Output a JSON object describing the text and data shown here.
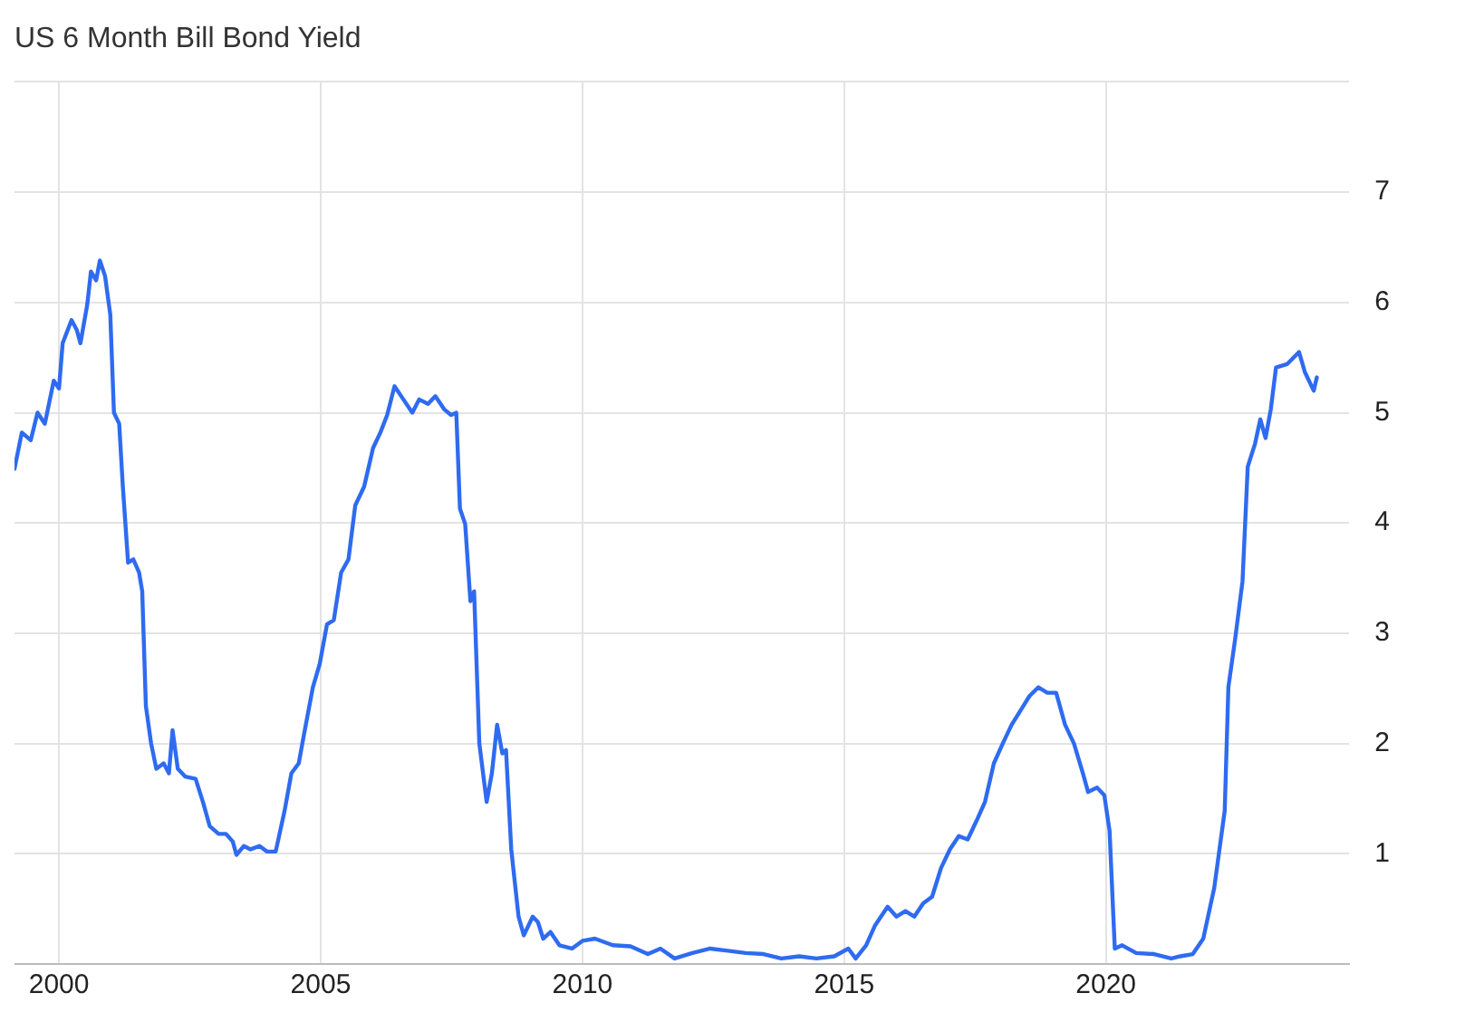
{
  "chart_data": {
    "type": "line",
    "title": "US 6 Month Bill Bond Yield",
    "xlim": [
      1999.15,
      2024.65
    ],
    "xticks": [
      2000,
      2005,
      2010,
      2015,
      2020
    ],
    "ylim": [
      0,
      8
    ],
    "yticks": [
      1,
      2,
      3,
      4,
      5,
      6,
      7,
      {
        "value": 8,
        "label": null
      }
    ],
    "grid": true,
    "legend": false,
    "marker": "none",
    "line_style": "solid",
    "series": [
      {
        "color": "#2f6bf0",
        "x": [
          1999.15,
          1999.29,
          1999.46,
          1999.59,
          1999.73,
          1999.9,
          2000.0,
          2000.07,
          2000.24,
          2000.34,
          2000.41,
          2000.54,
          2000.61,
          2000.71,
          2000.78,
          2000.88,
          2000.98,
          2001.05,
          2001.15,
          2001.22,
          2001.32,
          2001.42,
          2001.53,
          2001.59,
          2001.66,
          2001.76,
          2001.86,
          2002.0,
          2002.1,
          2002.17,
          2002.27,
          2002.41,
          2002.61,
          2002.75,
          2002.88,
          2003.05,
          2003.19,
          2003.32,
          2003.39,
          2003.53,
          2003.66,
          2003.83,
          2003.97,
          2004.14,
          2004.31,
          2004.44,
          2004.58,
          2004.68,
          2004.85,
          2004.98,
          2005.12,
          2005.25,
          2005.39,
          2005.53,
          2005.66,
          2005.83,
          2006.0,
          2006.14,
          2006.27,
          2006.41,
          2006.58,
          2006.75,
          2006.88,
          2007.05,
          2007.19,
          2007.36,
          2007.49,
          2007.59,
          2007.66,
          2007.76,
          2007.86,
          2007.93,
          2008.03,
          2008.17,
          2008.27,
          2008.37,
          2008.47,
          2008.54,
          2008.64,
          2008.78,
          2008.88,
          2009.05,
          2009.15,
          2009.25,
          2009.39,
          2009.56,
          2009.8,
          2010.0,
          2010.24,
          2010.58,
          2010.92,
          2011.25,
          2011.49,
          2011.76,
          2012.1,
          2012.44,
          2012.78,
          2013.12,
          2013.46,
          2013.8,
          2014.14,
          2014.47,
          2014.81,
          2015.08,
          2015.22,
          2015.42,
          2015.59,
          2015.83,
          2016.0,
          2016.17,
          2016.34,
          2016.51,
          2016.68,
          2016.85,
          2017.02,
          2017.19,
          2017.36,
          2017.53,
          2017.69,
          2017.86,
          2018.03,
          2018.2,
          2018.37,
          2018.54,
          2018.71,
          2018.88,
          2019.05,
          2019.22,
          2019.39,
          2019.56,
          2019.66,
          2019.83,
          2019.97,
          2020.07,
          2020.17,
          2020.31,
          2020.58,
          2020.92,
          2021.25,
          2021.42,
          2021.66,
          2021.86,
          2022.07,
          2022.27,
          2022.34,
          2022.47,
          2022.61,
          2022.71,
          2022.85,
          2022.95,
          2023.05,
          2023.15,
          2023.25,
          2023.46,
          2023.69,
          2023.8,
          2023.97,
          2024.03
        ],
        "values": [
          4.49,
          4.82,
          4.75,
          5.0,
          4.9,
          5.29,
          5.22,
          5.63,
          5.84,
          5.75,
          5.63,
          5.98,
          6.28,
          6.2,
          6.38,
          6.24,
          5.89,
          5.0,
          4.9,
          4.33,
          3.64,
          3.67,
          3.55,
          3.38,
          2.34,
          2.0,
          1.77,
          1.82,
          1.73,
          2.12,
          1.77,
          1.7,
          1.68,
          1.47,
          1.25,
          1.18,
          1.18,
          1.11,
          0.99,
          1.07,
          1.04,
          1.07,
          1.02,
          1.02,
          1.39,
          1.73,
          1.82,
          2.08,
          2.51,
          2.72,
          3.08,
          3.12,
          3.55,
          3.67,
          4.16,
          4.33,
          4.68,
          4.82,
          4.98,
          5.24,
          5.12,
          5.0,
          5.12,
          5.08,
          5.15,
          5.03,
          4.98,
          5.0,
          4.13,
          3.99,
          3.29,
          3.38,
          2.0,
          1.47,
          1.73,
          2.17,
          1.91,
          1.94,
          1.04,
          0.43,
          0.26,
          0.43,
          0.38,
          0.23,
          0.29,
          0.17,
          0.14,
          0.21,
          0.23,
          0.17,
          0.16,
          0.09,
          0.14,
          0.05,
          0.1,
          0.14,
          0.12,
          0.1,
          0.09,
          0.05,
          0.07,
          0.05,
          0.07,
          0.14,
          0.05,
          0.17,
          0.35,
          0.52,
          0.43,
          0.48,
          0.43,
          0.55,
          0.61,
          0.87,
          1.04,
          1.16,
          1.13,
          1.3,
          1.47,
          1.82,
          2.0,
          2.17,
          2.3,
          2.43,
          2.51,
          2.46,
          2.46,
          2.17,
          2.0,
          1.73,
          1.56,
          1.6,
          1.53,
          1.21,
          0.14,
          0.17,
          0.1,
          0.09,
          0.05,
          0.07,
          0.09,
          0.23,
          0.69,
          1.39,
          2.51,
          2.95,
          3.47,
          4.51,
          4.72,
          4.94,
          4.77,
          5.03,
          5.41,
          5.44,
          5.55,
          5.37,
          5.2,
          5.32
        ]
      }
    ]
  }
}
